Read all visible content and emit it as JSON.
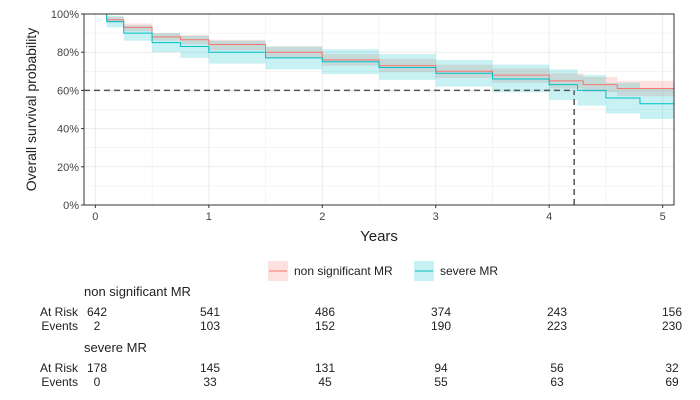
{
  "chart_data": {
    "type": "line",
    "subtype": "kaplan-meier",
    "xlabel": "Years",
    "ylabel": "Overall survival probability",
    "xlim": [
      -0.1,
      5.1
    ],
    "ylim": [
      0,
      1.0
    ],
    "xticks": [
      0,
      1,
      2,
      3,
      4,
      5
    ],
    "yticks": [
      0,
      0.2,
      0.4,
      0.6,
      0.8,
      1.0
    ],
    "ytick_labels": [
      "0%",
      "20%",
      "40%",
      "60%",
      "80%",
      "100%"
    ],
    "grid": true,
    "legend_position": "bottom",
    "series": [
      {
        "name": "non significant MR",
        "color": "#F8766D",
        "band_color": "#F8766D",
        "points": [
          [
            0,
            1.0
          ],
          [
            0.1,
            0.97
          ],
          [
            0.25,
            0.93
          ],
          [
            0.5,
            0.88
          ],
          [
            0.75,
            0.865
          ],
          [
            1.0,
            0.84
          ],
          [
            1.5,
            0.8
          ],
          [
            2.0,
            0.76
          ],
          [
            2.5,
            0.73
          ],
          [
            3.0,
            0.7
          ],
          [
            3.5,
            0.68
          ],
          [
            4.0,
            0.65
          ],
          [
            4.3,
            0.63
          ],
          [
            4.6,
            0.61
          ],
          [
            5.1,
            0.61
          ]
        ],
        "lower": [
          [
            0,
            1.0
          ],
          [
            0.1,
            0.955
          ],
          [
            0.25,
            0.91
          ],
          [
            0.5,
            0.86
          ],
          [
            0.75,
            0.84
          ],
          [
            1.0,
            0.81
          ],
          [
            1.5,
            0.77
          ],
          [
            2.0,
            0.73
          ],
          [
            2.5,
            0.695
          ],
          [
            3.0,
            0.665
          ],
          [
            3.5,
            0.64
          ],
          [
            4.0,
            0.61
          ],
          [
            4.3,
            0.59
          ],
          [
            4.6,
            0.57
          ],
          [
            5.1,
            0.57
          ]
        ],
        "upper": [
          [
            0,
            1.0
          ],
          [
            0.1,
            0.985
          ],
          [
            0.25,
            0.95
          ],
          [
            0.5,
            0.9
          ],
          [
            0.75,
            0.89
          ],
          [
            1.0,
            0.865
          ],
          [
            1.5,
            0.83
          ],
          [
            2.0,
            0.79
          ],
          [
            2.5,
            0.765
          ],
          [
            3.0,
            0.735
          ],
          [
            3.5,
            0.715
          ],
          [
            4.0,
            0.69
          ],
          [
            4.3,
            0.67
          ],
          [
            4.6,
            0.65
          ],
          [
            5.1,
            0.65
          ]
        ]
      },
      {
        "name": "severe MR",
        "color": "#00BFC4",
        "band_color": "#00BFC4",
        "points": [
          [
            0,
            1.0
          ],
          [
            0.1,
            0.96
          ],
          [
            0.25,
            0.9
          ],
          [
            0.5,
            0.85
          ],
          [
            0.75,
            0.83
          ],
          [
            1.0,
            0.8
          ],
          [
            1.5,
            0.77
          ],
          [
            2.0,
            0.75
          ],
          [
            2.5,
            0.72
          ],
          [
            3.0,
            0.69
          ],
          [
            3.5,
            0.66
          ],
          [
            4.0,
            0.63
          ],
          [
            4.25,
            0.6
          ],
          [
            4.5,
            0.56
          ],
          [
            4.8,
            0.53
          ],
          [
            5.1,
            0.53
          ]
        ],
        "lower": [
          [
            0,
            1.0
          ],
          [
            0.1,
            0.93
          ],
          [
            0.25,
            0.86
          ],
          [
            0.5,
            0.8
          ],
          [
            0.75,
            0.77
          ],
          [
            1.0,
            0.74
          ],
          [
            1.5,
            0.71
          ],
          [
            2.0,
            0.685
          ],
          [
            2.5,
            0.655
          ],
          [
            3.0,
            0.62
          ],
          [
            3.5,
            0.59
          ],
          [
            4.0,
            0.55
          ],
          [
            4.25,
            0.52
          ],
          [
            4.5,
            0.48
          ],
          [
            4.8,
            0.45
          ],
          [
            5.1,
            0.45
          ]
        ],
        "upper": [
          [
            0,
            1.0
          ],
          [
            0.1,
            0.99
          ],
          [
            0.25,
            0.94
          ],
          [
            0.5,
            0.9
          ],
          [
            0.75,
            0.885
          ],
          [
            1.0,
            0.86
          ],
          [
            1.5,
            0.83
          ],
          [
            2.0,
            0.815
          ],
          [
            2.5,
            0.79
          ],
          [
            3.0,
            0.76
          ],
          [
            3.5,
            0.735
          ],
          [
            4.0,
            0.71
          ],
          [
            4.25,
            0.68
          ],
          [
            4.5,
            0.64
          ],
          [
            4.8,
            0.61
          ],
          [
            5.1,
            0.61
          ]
        ]
      }
    ],
    "reference_lines": [
      {
        "orientation": "horizontal",
        "y": 0.6,
        "x_from": -0.1,
        "x_to": 4.22,
        "style": "dashed",
        "color": "#555555"
      },
      {
        "orientation": "vertical",
        "x": 4.22,
        "y_from": 0.0,
        "y_to": 0.6,
        "style": "dashed",
        "color": "#555555"
      }
    ],
    "plot_background": "#FFFFFF",
    "grid_color": "#EBEBEB"
  },
  "risk_table": {
    "row_labels": [
      "At Risk",
      "Events"
    ],
    "groups": [
      {
        "title": "non significant MR",
        "at_risk": [
          "642",
          "541",
          "486",
          "374",
          "243",
          "156"
        ],
        "events": [
          "2",
          "103",
          "152",
          "190",
          "223",
          "230"
        ]
      },
      {
        "title": "severe MR",
        "at_risk": [
          "178",
          "145",
          "131",
          "94",
          "56",
          "32"
        ],
        "events": [
          "0",
          "33",
          "45",
          "55",
          "63",
          "69"
        ]
      }
    ]
  }
}
